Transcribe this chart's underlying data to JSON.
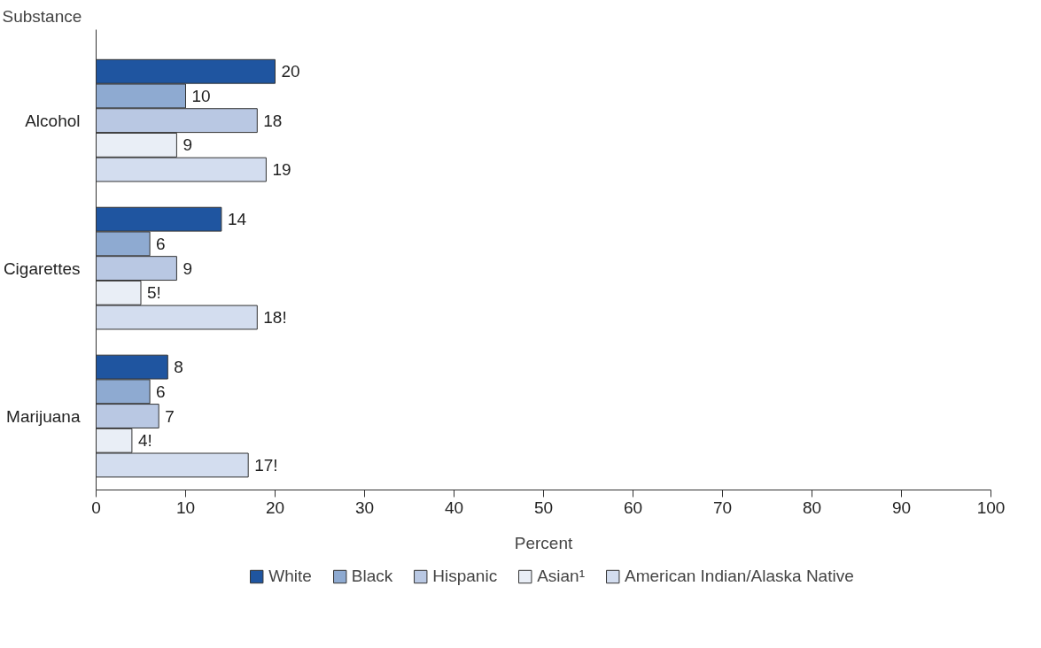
{
  "chart_data": {
    "type": "bar",
    "orientation": "horizontal",
    "ylabel": "Substance",
    "xlabel": "Percent",
    "categories": [
      "Alcohol",
      "Cigarettes",
      "Marijuana"
    ],
    "series": [
      {
        "name": "White",
        "color": "#1f55a0",
        "values": [
          20,
          14,
          8
        ],
        "value_labels": [
          "20",
          "14",
          "8"
        ]
      },
      {
        "name": "Black",
        "color": "#8eaad1",
        "values": [
          10,
          6,
          6
        ],
        "value_labels": [
          "10",
          "6",
          "6"
        ]
      },
      {
        "name": "Hispanic",
        "color": "#b9c8e3",
        "values": [
          18,
          9,
          7
        ],
        "value_labels": [
          "18",
          "9",
          "7"
        ]
      },
      {
        "name": "Asian¹",
        "color": "#e9eef6",
        "values": [
          9,
          5,
          4
        ],
        "value_labels": [
          "9",
          "5!",
          "4!"
        ]
      },
      {
        "name": "American Indian/Alaska Native",
        "color": "#d3ddef",
        "values": [
          19,
          18,
          17
        ],
        "value_labels": [
          "19",
          "18!",
          "17!"
        ]
      }
    ],
    "xlim": [
      0,
      100
    ],
    "xticks": [
      0,
      10,
      20,
      30,
      40,
      50,
      60,
      70,
      80,
      90,
      100
    ],
    "grid": false,
    "legend": "bottom"
  }
}
